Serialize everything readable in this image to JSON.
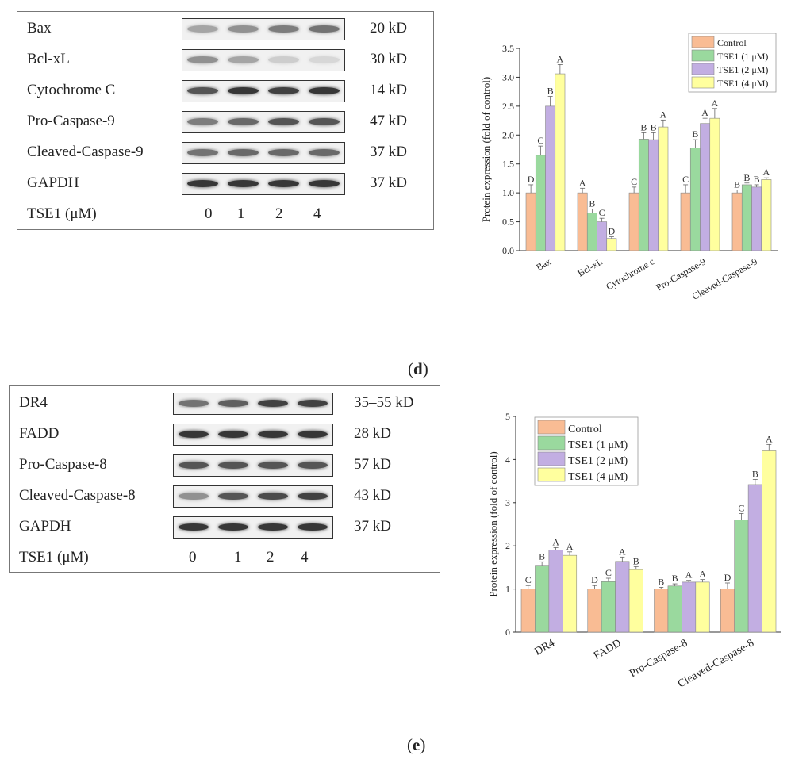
{
  "panel_d": {
    "blot": {
      "rows": [
        {
          "protein": "Bax",
          "size": "20 kD"
        },
        {
          "protein": "Bcl-xL",
          "size": "30 kD"
        },
        {
          "protein": "Cytochrome C",
          "size": "14 kD"
        },
        {
          "protein": "Pro-Caspase-9",
          "size": "47 kD"
        },
        {
          "protein": "Cleaved-Caspase-9",
          "size": "37 kD"
        },
        {
          "protein": "GAPDH",
          "size": "37 kD"
        }
      ],
      "dose_label": "TSE1 (μM)",
      "lanes": [
        "0",
        "1",
        "2",
        "4"
      ]
    },
    "label_open": "(",
    "label_letter": "d",
    "label_close": ")"
  },
  "panel_e": {
    "blot": {
      "rows": [
        {
          "protein": "DR4",
          "size": "35–55 kD"
        },
        {
          "protein": "FADD",
          "size": "28 kD"
        },
        {
          "protein": "Pro-Caspase-8",
          "size": "57 kD"
        },
        {
          "protein": "Cleaved-Caspase-8",
          "size": "43 kD"
        },
        {
          "protein": "GAPDH",
          "size": "37 kD"
        }
      ],
      "dose_label": "TSE1 (μM)",
      "lanes": [
        "0",
        "1",
        "2",
        "4"
      ]
    },
    "label_open": "(",
    "label_letter": "e",
    "label_close": ")"
  },
  "colors": {
    "control": "#f9bc94",
    "tse1_1": "#9ad99e",
    "tse1_2": "#c2aee2",
    "tse1_4": "#ffff9e"
  },
  "chart_data": [
    {
      "type": "bar",
      "title": "",
      "xlabel": "",
      "ylabel": "Protein expression (fold of control)",
      "ylim": [
        0,
        3.5
      ],
      "yticks": [
        "0.0",
        "0.5",
        "1.0",
        "1.5",
        "2.0",
        "2.5",
        "3.0",
        "3.5"
      ],
      "categories": [
        "Bax",
        "Bcl-xL",
        "Cytochrome c",
        "Pro-Caspase-9",
        "Cleaved-Caspase-9"
      ],
      "series": [
        {
          "name": "Control",
          "values": [
            1.0,
            1.0,
            1.0,
            1.0,
            1.0
          ],
          "errors": [
            0.14,
            0.08,
            0.1,
            0.14,
            0.05
          ],
          "letters": [
            "D",
            "A",
            "C",
            "C",
            "B"
          ]
        },
        {
          "name": "TSE1 (1 μM)",
          "values": [
            1.65,
            0.65,
            1.93,
            1.78,
            1.14
          ],
          "errors": [
            0.16,
            0.07,
            0.11,
            0.14,
            0.03
          ],
          "letters": [
            "C",
            "B",
            "B",
            "B",
            "B"
          ]
        },
        {
          "name": "TSE1 (2 μM)",
          "values": [
            2.5,
            0.5,
            1.92,
            2.2,
            1.1
          ],
          "errors": [
            0.17,
            0.06,
            0.12,
            0.09,
            0.04
          ],
          "letters": [
            "B",
            "C",
            "B",
            "A",
            "B"
          ]
        },
        {
          "name": "TSE1 (4 μM)",
          "values": [
            3.06,
            0.21,
            2.14,
            2.29,
            1.23
          ],
          "errors": [
            0.16,
            0.03,
            0.12,
            0.17,
            0.03
          ],
          "letters": [
            "A",
            "D",
            "A",
            "A",
            "A"
          ]
        }
      ],
      "legend": "top-right"
    },
    {
      "type": "bar",
      "title": "",
      "xlabel": "",
      "ylabel": "Protein expression (fold of control)",
      "ylim": [
        0,
        5
      ],
      "yticks": [
        "0",
        "1",
        "2",
        "3",
        "4",
        "5"
      ],
      "categories": [
        "DR4",
        "FADD",
        "Pro-Caspase-8",
        "Cleaved-Caspase-8"
      ],
      "series": [
        {
          "name": "Control",
          "values": [
            1.0,
            1.0,
            1.0,
            1.0
          ],
          "errors": [
            0.08,
            0.08,
            0.04,
            0.14
          ],
          "letters": [
            "C",
            "D",
            "B",
            "D"
          ]
        },
        {
          "name": "TSE1 (1 μM)",
          "values": [
            1.55,
            1.17,
            1.07,
            2.6
          ],
          "errors": [
            0.08,
            0.08,
            0.05,
            0.15
          ],
          "letters": [
            "B",
            "C",
            "B",
            "C"
          ]
        },
        {
          "name": "TSE1 (2 μM)",
          "values": [
            1.9,
            1.64,
            1.16,
            3.42
          ],
          "errors": [
            0.06,
            0.1,
            0.04,
            0.12
          ],
          "letters": [
            "A",
            "A",
            "A",
            "B"
          ]
        },
        {
          "name": "TSE1 (4 μM)",
          "values": [
            1.78,
            1.45,
            1.16,
            4.22
          ],
          "errors": [
            0.08,
            0.07,
            0.06,
            0.13
          ],
          "letters": [
            "A",
            "B",
            "A",
            "A"
          ]
        }
      ],
      "legend": "top-left"
    }
  ]
}
